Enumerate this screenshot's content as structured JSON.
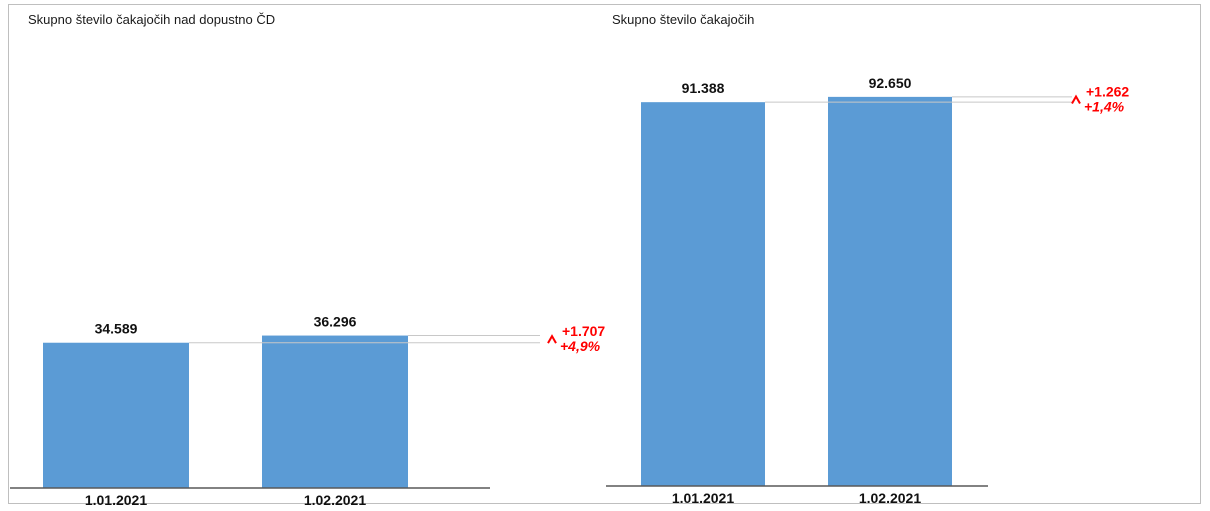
{
  "chart_data": [
    {
      "type": "bar",
      "title": "Skupno število čakajočih nad dopustno ČD",
      "categories": [
        "1.01.2021",
        "1.02.2021"
      ],
      "values": [
        34589,
        36296
      ],
      "value_labels": [
        "34.589",
        "36.296"
      ],
      "delta": {
        "absolute": "+1.707",
        "percent": "+4,9%"
      },
      "ylim": [
        0,
        100000
      ],
      "grid": false,
      "legend": "none",
      "bar_color": "#5b9bd5",
      "delta_color": "#ff0000"
    },
    {
      "type": "bar",
      "title": "Skupno število čakajočih",
      "categories": [
        "1.01.2021",
        "1.02.2021"
      ],
      "values": [
        91388,
        92650
      ],
      "value_labels": [
        "91.388",
        "92.650"
      ],
      "delta": {
        "absolute": "+1.262",
        "percent": "+1,4%"
      },
      "ylim": [
        0,
        100000
      ],
      "grid": false,
      "legend": "none",
      "bar_color": "#5b9bd5",
      "delta_color": "#ff0000"
    }
  ]
}
